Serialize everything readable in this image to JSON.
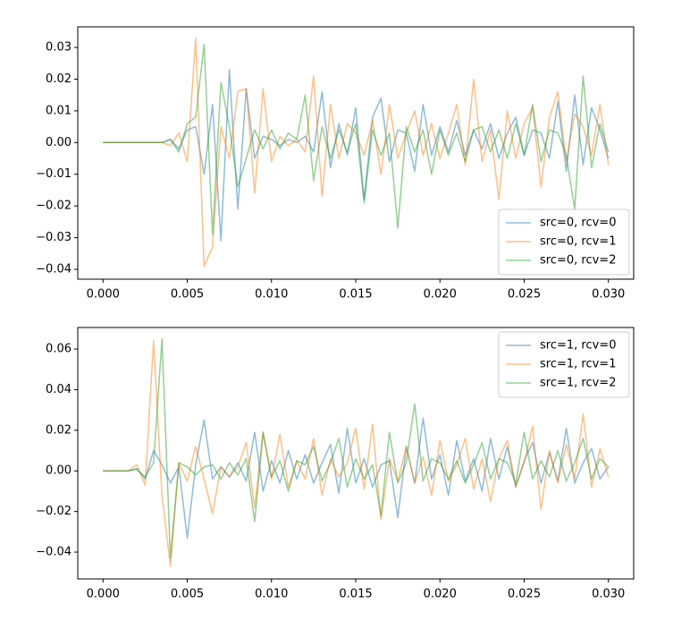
{
  "chart_data": [
    {
      "type": "line",
      "x": [
        0,
        0.0005,
        0.001,
        0.0015,
        0.002,
        0.0025,
        0.003,
        0.0035,
        0.004,
        0.0045,
        0.005,
        0.0055,
        0.006,
        0.0065,
        0.007,
        0.0075,
        0.008,
        0.0085,
        0.009,
        0.0095,
        0.01,
        0.0105,
        0.011,
        0.0115,
        0.012,
        0.0125,
        0.013,
        0.0135,
        0.014,
        0.0145,
        0.015,
        0.0155,
        0.016,
        0.0165,
        0.017,
        0.0175,
        0.018,
        0.0185,
        0.019,
        0.0195,
        0.02,
        0.0205,
        0.021,
        0.0215,
        0.022,
        0.0225,
        0.023,
        0.0235,
        0.024,
        0.0245,
        0.025,
        0.0255,
        0.026,
        0.0265,
        0.027,
        0.0275,
        0.028,
        0.0285,
        0.029,
        0.0295,
        0.03
      ],
      "series": [
        {
          "name": "src=0, rcv=0",
          "color": "#1f77b4",
          "values": [
            0,
            0,
            0,
            0,
            0,
            0,
            0,
            0,
            0.001,
            -0.002,
            0.004,
            0.005,
            -0.01,
            0.012,
            -0.031,
            0.023,
            -0.021,
            0.017,
            -0.005,
            0.002,
            0.001,
            -0.001,
            0.001,
            0,
            0.002,
            -0.003,
            0.016,
            -0.008,
            0.006,
            -0.004,
            0.011,
            -0.018,
            0.008,
            0.014,
            -0.006,
            0.004,
            0.003,
            -0.009,
            0.012,
            -0.004,
            0.005,
            -0.003,
            0.007,
            -0.004,
            0.004,
            -0.002,
            0.006,
            -0.005,
            0.003,
            0.008,
            -0.004,
            0.004,
            0.003,
            -0.005,
            0.013,
            -0.009,
            0.015,
            -0.007,
            0.011,
            0.004,
            -0.005
          ]
        },
        {
          "name": "src=0, rcv=1",
          "color": "#ff7f0e",
          "values": [
            0,
            0,
            0,
            0,
            0,
            0,
            0,
            0,
            -0.001,
            0.003,
            -0.006,
            0.033,
            -0.039,
            -0.033,
            0.005,
            -0.005,
            0.016,
            0.017,
            -0.016,
            0.017,
            -0.006,
            0.002,
            -0.001,
            0.001,
            -0.003,
            0.021,
            -0.017,
            0.012,
            -0.005,
            0.006,
            0.003,
            -0.004,
            0.007,
            -0.01,
            0.012,
            -0.005,
            0.003,
            0.01,
            -0.004,
            0.006,
            -0.005,
            0.003,
            0.012,
            -0.007,
            0.02,
            -0.006,
            0.004,
            -0.018,
            0.01,
            -0.005,
            0.006,
            0.011,
            -0.014,
            0.008,
            0.016,
            -0.006,
            0.009,
            0.005,
            -0.004,
            0.012,
            -0.007
          ]
        },
        {
          "name": "src=0, rcv=2",
          "color": "#2ca02c",
          "values": [
            0,
            0,
            0,
            0,
            0,
            0,
            0,
            0,
            0.001,
            -0.003,
            0.006,
            0.008,
            0.031,
            -0.029,
            0.019,
            0.005,
            -0.014,
            -0.005,
            0.004,
            -0.002,
            0.004,
            -0.002,
            0.003,
            0.001,
            0.015,
            -0.012,
            0.005,
            -0.005,
            0.004,
            -0.003,
            0.006,
            -0.019,
            0.004,
            -0.004,
            0.003,
            -0.027,
            0.005,
            -0.003,
            0.004,
            -0.01,
            0.004,
            -0.004,
            0.003,
            -0.006,
            0.004,
            0.005,
            -0.003,
            0.004,
            -0.005,
            0.006,
            -0.004,
            0.012,
            -0.006,
            0.004,
            0.003,
            -0.004,
            -0.021,
            0.021,
            -0.008,
            0.006,
            -0.003
          ]
        }
      ],
      "xlim": [
        -0.0015,
        0.0315
      ],
      "xticks": [
        {
          "value": 0,
          "label": "0.000"
        },
        {
          "value": 0.005,
          "label": "0.005"
        },
        {
          "value": 0.01,
          "label": "0.010"
        },
        {
          "value": 0.015,
          "label": "0.015"
        },
        {
          "value": 0.02,
          "label": "0.020"
        },
        {
          "value": 0.025,
          "label": "0.025"
        },
        {
          "value": 0.03,
          "label": "0.030"
        }
      ],
      "ylim": [
        -0.0431,
        0.0365
      ],
      "yticks": [
        {
          "value": -0.04,
          "label": "−0.04"
        },
        {
          "value": -0.03,
          "label": "−0.03"
        },
        {
          "value": -0.02,
          "label": "−0.02"
        },
        {
          "value": -0.01,
          "label": "−0.01"
        },
        {
          "value": 0,
          "label": "0.00"
        },
        0.01,
        0.02,
        0.03
      ],
      "legend": "lower right"
    },
    {
      "type": "line",
      "x": [
        0,
        0.0005,
        0.001,
        0.0015,
        0.002,
        0.0025,
        0.003,
        0.0035,
        0.004,
        0.0045,
        0.005,
        0.0055,
        0.006,
        0.0065,
        0.007,
        0.0075,
        0.008,
        0.0085,
        0.009,
        0.0095,
        0.01,
        0.0105,
        0.011,
        0.0115,
        0.012,
        0.0125,
        0.013,
        0.0135,
        0.014,
        0.0145,
        0.015,
        0.0155,
        0.016,
        0.0165,
        0.017,
        0.0175,
        0.018,
        0.0185,
        0.019,
        0.0195,
        0.02,
        0.0205,
        0.021,
        0.0215,
        0.022,
        0.0225,
        0.023,
        0.0235,
        0.024,
        0.0245,
        0.025,
        0.0255,
        0.026,
        0.0265,
        0.027,
        0.0275,
        0.028,
        0.0285,
        0.029,
        0.0295,
        0.03
      ],
      "series": [
        {
          "name": "src=1, rcv=0",
          "color": "#1f77b4",
          "values": [
            0,
            0,
            0,
            0,
            0.001,
            -0.004,
            0.01,
            0.003,
            -0.006,
            0.002,
            -0.033,
            0.003,
            0.025,
            -0.004,
            0.002,
            -0.003,
            0.004,
            -0.005,
            0.019,
            -0.01,
            0.005,
            -0.006,
            0.01,
            -0.004,
            0.008,
            -0.006,
            0.004,
            0.013,
            -0.011,
            0.021,
            -0.006,
            0.006,
            -0.008,
            0.003,
            0.005,
            -0.023,
            0.012,
            -0.006,
            0.026,
            -0.004,
            0.008,
            -0.012,
            0.015,
            -0.005,
            0.006,
            -0.01,
            0.016,
            -0.004,
            0.012,
            -0.008,
            0.005,
            0.014,
            -0.006,
            0.009,
            -0.005,
            0.021,
            -0.006,
            0.004,
            0.011,
            -0.004,
            0.002
          ]
        },
        {
          "name": "src=1, rcv=1",
          "color": "#ff7f0e",
          "values": [
            0,
            0,
            0,
            0,
            0.003,
            -0.007,
            0.064,
            -0.012,
            -0.047,
            0.004,
            -0.005,
            0.012,
            -0.004,
            -0.021,
            0.002,
            -0.003,
            0.002,
            0.014,
            -0.018,
            0.019,
            -0.004,
            0.018,
            -0.008,
            0.005,
            -0.004,
            0.016,
            -0.012,
            0.006,
            -0.003,
            0.004,
            0.021,
            -0.009,
            0.023,
            -0.024,
            0.006,
            -0.005,
            0.012,
            -0.006,
            0.007,
            -0.012,
            0.015,
            -0.005,
            0.003,
            0.016,
            -0.009,
            0.006,
            -0.015,
            0.006,
            0.015,
            -0.008,
            0.004,
            0.022,
            -0.019,
            0.01,
            -0.006,
            0.013,
            -0.004,
            0.028,
            -0.008,
            0.011,
            -0.003
          ]
        },
        {
          "name": "src=1, rcv=2",
          "color": "#2ca02c",
          "values": [
            0,
            0,
            0,
            0,
            0.001,
            -0.003,
            0.004,
            0.065,
            -0.043,
            0.004,
            0.002,
            -0.002,
            0.002,
            0.003,
            -0.004,
            0.004,
            -0.002,
            0.006,
            -0.025,
            0.019,
            -0.003,
            0.005,
            -0.01,
            0.005,
            0.003,
            0.012,
            -0.005,
            0.004,
            0.016,
            -0.008,
            0.006,
            -0.004,
            0.003,
            -0.022,
            0.019,
            -0.006,
            0.004,
            0.033,
            -0.005,
            0.006,
            0.004,
            -0.004,
            0.005,
            -0.006,
            0.003,
            0.014,
            -0.004,
            0.006,
            0.004,
            -0.006,
            0.019,
            -0.004,
            0.005,
            -0.003,
            0.01,
            -0.005,
            0.004,
            0.016,
            -0.004,
            0.006,
            0.002
          ]
        }
      ],
      "xlim": [
        -0.0015,
        0.0315
      ],
      "xticks": [
        {
          "value": 0,
          "label": "0.000"
        },
        {
          "value": 0.005,
          "label": "0.005"
        },
        {
          "value": 0.01,
          "label": "0.010"
        },
        {
          "value": 0.015,
          "label": "0.015"
        },
        {
          "value": 0.02,
          "label": "0.020"
        },
        {
          "value": 0.025,
          "label": "0.025"
        },
        {
          "value": 0.03,
          "label": "0.030"
        }
      ],
      "ylim": [
        -0.0532,
        0.0706
      ],
      "yticks": [
        {
          "value": -0.04,
          "label": "−0.04"
        },
        {
          "value": -0.02,
          "label": "−0.02"
        },
        {
          "value": 0,
          "label": "0.00"
        },
        0.02,
        0.04,
        0.06
      ],
      "legend": "upper right"
    }
  ]
}
